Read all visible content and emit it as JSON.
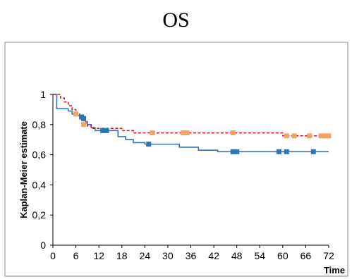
{
  "chart_data": {
    "type": "line",
    "title": "OS",
    "xlabel": "Time",
    "ylabel": "Kaplan-Meier estimate",
    "xlim": [
      0,
      72
    ],
    "ylim": [
      0,
      1
    ],
    "x_ticks": [
      0,
      6,
      12,
      18,
      24,
      30,
      36,
      42,
      48,
      54,
      60,
      66,
      72
    ],
    "y_ticks": [
      0,
      0.2,
      0.4,
      0.6,
      0.8,
      1
    ],
    "x_tick_labels": [
      "0",
      "6",
      "12",
      "18",
      "24",
      "30",
      "36",
      "42",
      "48",
      "54",
      "60",
      "66",
      "72"
    ],
    "y_tick_labels": [
      "0",
      "0,2",
      "0,4",
      "0,6",
      "0,8",
      "1"
    ],
    "grid": false,
    "legend": "none",
    "series": [
      {
        "color": "#2e75b6",
        "line_style": "solid",
        "censor_marker": "square",
        "steps": [
          [
            0,
            1.0
          ],
          [
            1,
            0.905
          ],
          [
            4,
            0.89
          ],
          [
            5,
            0.87
          ],
          [
            6,
            0.86
          ],
          [
            7,
            0.85
          ],
          [
            8.5,
            0.82
          ],
          [
            9,
            0.8
          ],
          [
            10,
            0.78
          ],
          [
            11,
            0.76
          ],
          [
            17,
            0.72
          ],
          [
            19,
            0.7
          ],
          [
            21,
            0.68
          ],
          [
            24,
            0.67
          ],
          [
            33,
            0.65
          ],
          [
            38,
            0.63
          ],
          [
            43,
            0.62
          ],
          [
            72,
            0.62
          ]
        ],
        "censored": [
          [
            7.5,
            0.85
          ],
          [
            8,
            0.84
          ],
          [
            13,
            0.76
          ],
          [
            14,
            0.76
          ],
          [
            25,
            0.67
          ],
          [
            47,
            0.62
          ],
          [
            48,
            0.62
          ],
          [
            59,
            0.62
          ],
          [
            61,
            0.62
          ],
          [
            68,
            0.62
          ]
        ]
      },
      {
        "color": "#e31a1c",
        "marker_color": "#f4a261",
        "line_style": "dashed",
        "censor_marker": "square",
        "steps": [
          [
            0,
            1.0
          ],
          [
            2,
            0.975
          ],
          [
            3,
            0.95
          ],
          [
            4,
            0.925
          ],
          [
            5,
            0.9
          ],
          [
            6,
            0.87
          ],
          [
            7,
            0.84
          ],
          [
            8,
            0.81
          ],
          [
            9,
            0.79
          ],
          [
            10,
            0.775
          ],
          [
            18,
            0.76
          ],
          [
            21,
            0.745
          ],
          [
            60,
            0.725
          ],
          [
            72,
            0.725
          ]
        ],
        "censored": [
          [
            6,
            0.87
          ],
          [
            8,
            0.8
          ],
          [
            26,
            0.745
          ],
          [
            34,
            0.745
          ],
          [
            35,
            0.745
          ],
          [
            47,
            0.745
          ],
          [
            61,
            0.725
          ],
          [
            63,
            0.725
          ],
          [
            67,
            0.725
          ],
          [
            70,
            0.725
          ],
          [
            71,
            0.725
          ],
          [
            72,
            0.725
          ]
        ]
      }
    ]
  }
}
